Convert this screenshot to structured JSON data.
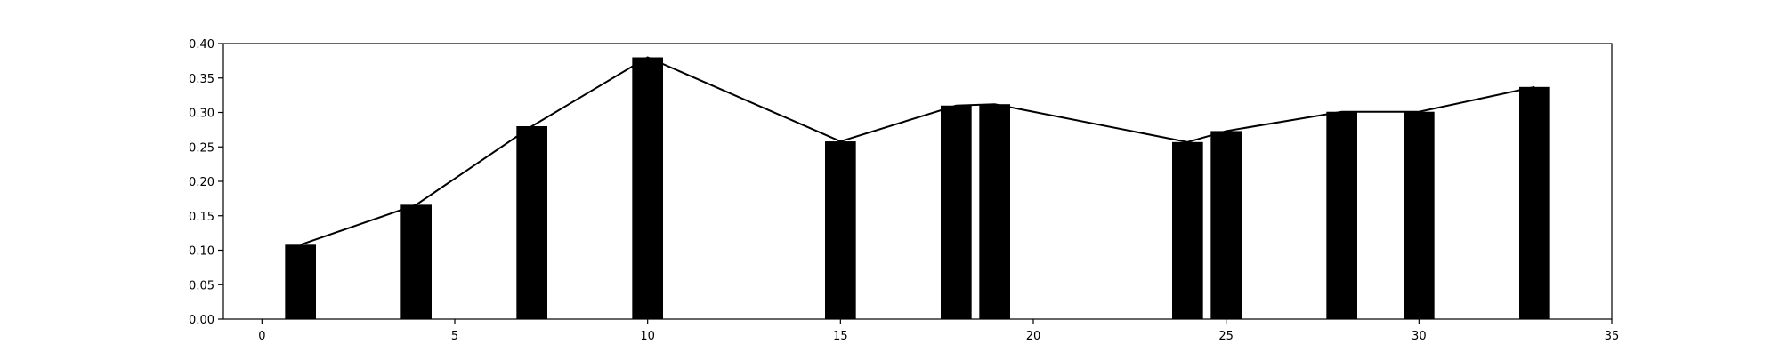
{
  "chart_data": {
    "type": "bar",
    "title": "",
    "xlabel": "",
    "ylabel": "",
    "xlim": [
      -1,
      35
    ],
    "ylim": [
      0,
      0.4
    ],
    "grid": false,
    "bar_width": 0.8,
    "colors": {
      "bar": "#000000",
      "line": "#000000",
      "axis": "#000000",
      "background": "#ffffff"
    },
    "x_ticks": [
      0,
      5,
      10,
      15,
      20,
      25,
      30,
      35
    ],
    "x_tick_labels": [
      "0",
      "5",
      "10",
      "15",
      "20",
      "25",
      "30",
      "35"
    ],
    "y_ticks": [
      0,
      0.05,
      0.1,
      0.15,
      0.2,
      0.25,
      0.3,
      0.35,
      0.4
    ],
    "y_tick_labels": [
      "0.00",
      "0.05",
      "0.10",
      "0.15",
      "0.20",
      "0.25",
      "0.30",
      "0.35",
      "0.40"
    ],
    "series": [
      {
        "kind": "bar",
        "x": [
          1,
          4,
          7,
          10,
          15,
          18,
          19,
          24,
          25,
          28,
          30,
          33
        ],
        "values": [
          0.108,
          0.166,
          0.28,
          0.38,
          0.258,
          0.31,
          0.312,
          0.257,
          0.273,
          0.301,
          0.301,
          0.337
        ]
      },
      {
        "kind": "line",
        "x": [
          1,
          4,
          7,
          10,
          15,
          18,
          19,
          24,
          25,
          28,
          30,
          33
        ],
        "values": [
          0.108,
          0.166,
          0.28,
          0.38,
          0.258,
          0.31,
          0.312,
          0.257,
          0.273,
          0.301,
          0.301,
          0.337
        ]
      }
    ]
  }
}
